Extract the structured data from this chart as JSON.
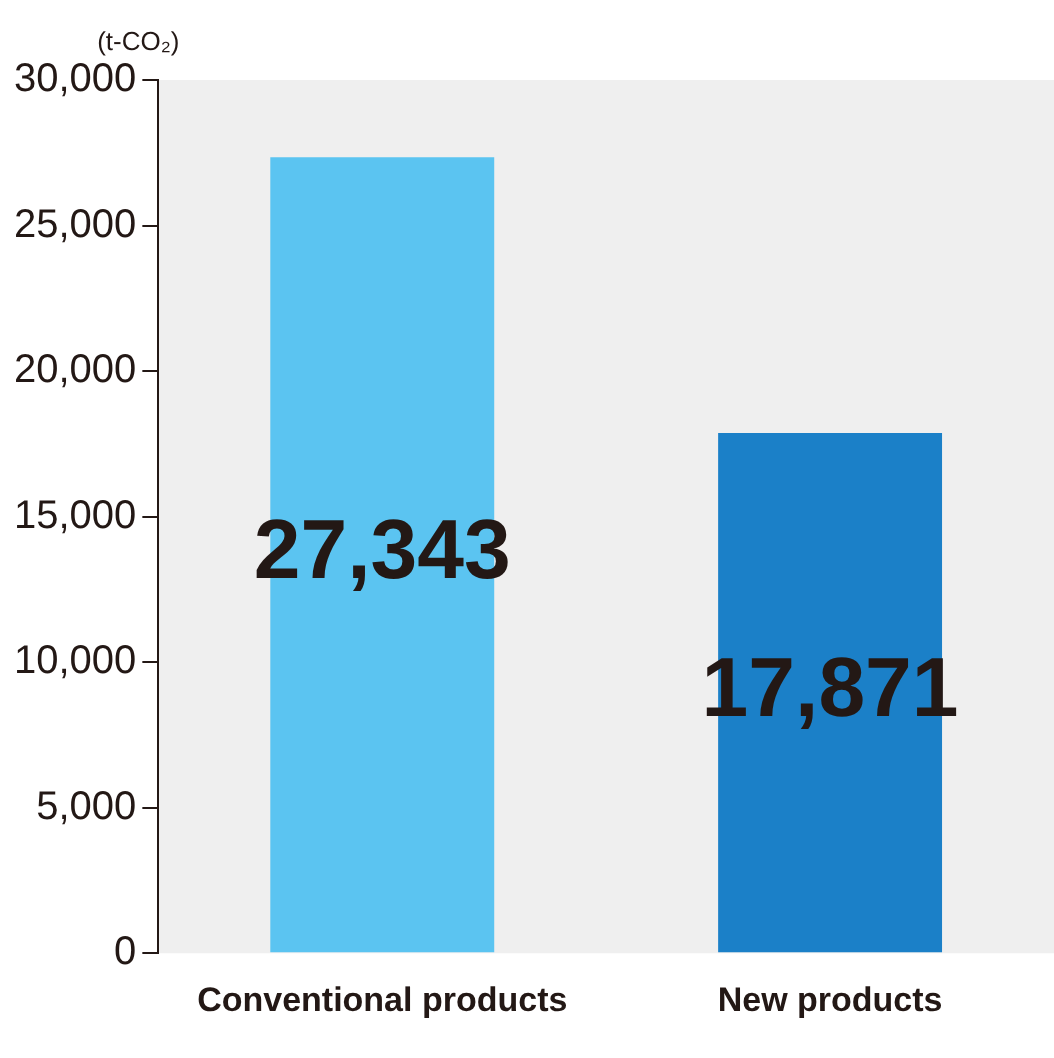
{
  "chart_data": {
    "type": "bar",
    "ylabel": "(t-CO₂)",
    "categories": [
      "Conventional products",
      "New products"
    ],
    "values": [
      27343,
      17871
    ],
    "value_labels": [
      "27,343",
      "17,871"
    ],
    "colors": [
      "#5bc4f1",
      "#1b80c8"
    ],
    "ylim": [
      0,
      30000
    ],
    "yticks": [
      0,
      {
        "value": 5000,
        "label": "5,000"
      },
      {
        "value": 10000,
        "label": "10,000"
      },
      {
        "value": 15000,
        "label": "15,000"
      },
      {
        "value": 20000,
        "label": "20,000"
      },
      {
        "value": 25000,
        "label": "25,000"
      },
      {
        "value": 30000,
        "label": "30,000"
      }
    ],
    "grid": false,
    "legend": false
  }
}
